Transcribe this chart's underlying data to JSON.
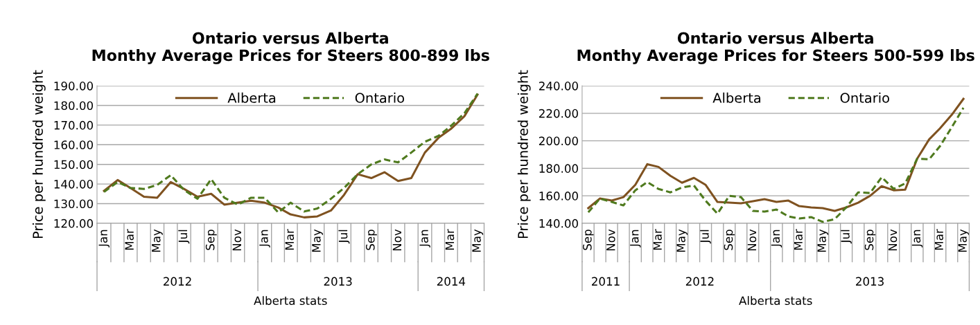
{
  "chart_data": [
    {
      "type": "line",
      "title": "Ontario versus Alberta\nMonthy Average Prices for Steers 800-899 lbs",
      "ylabel": "Price per hundred weight",
      "x": [
        "2012-01",
        "2012-02",
        "2012-03",
        "2012-04",
        "2012-05",
        "2012-06",
        "2012-07",
        "2012-08",
        "2012-09",
        "2012-10",
        "2012-11",
        "2012-12",
        "2013-01",
        "2013-02",
        "2013-03",
        "2013-04",
        "2013-05",
        "2013-06",
        "2013-07",
        "2013-08",
        "2013-09",
        "2013-10",
        "2013-11",
        "2013-12",
        "2014-01",
        "2014-02",
        "2014-03",
        "2014-04",
        "2014-05"
      ],
      "series": [
        {
          "name": "Alberta",
          "color": "#7f5220",
          "line_style": "solid",
          "values": [
            136.5,
            142,
            138,
            133.5,
            133,
            141,
            137.5,
            133.5,
            135,
            129.5,
            130.5,
            131.5,
            130.5,
            128,
            124.5,
            123,
            123.5,
            126.5,
            134.5,
            145,
            143,
            146,
            141.5,
            143,
            156,
            163.5,
            168,
            174.5,
            185.5
          ]
        },
        {
          "name": "Ontario",
          "color": "#4f7a1e",
          "line_style": "dashed",
          "values": [
            136,
            141,
            138,
            137.5,
            139.5,
            144.5,
            137,
            132.5,
            142.5,
            133,
            129.5,
            133,
            133,
            125.5,
            130.5,
            126,
            127.5,
            132.5,
            138,
            145,
            150,
            152.5,
            151,
            156,
            161.5,
            164.5,
            169.5,
            176,
            186
          ]
        }
      ],
      "xlim": [
        "2011-12-16",
        "2014-05-16"
      ],
      "xticks": [
        {
          "value": "2012-01",
          "label": "Jan"
        },
        {
          "value": "2012-03",
          "label": "Mar"
        },
        {
          "value": "2012-05",
          "label": "May"
        },
        {
          "value": "2012-07",
          "label": "Jul"
        },
        {
          "value": "2012-09",
          "label": "Sep"
        },
        {
          "value": "2012-11",
          "label": "Nov"
        },
        {
          "value": "2013-01",
          "label": "Jan"
        },
        {
          "value": "2013-03",
          "label": "Mar"
        },
        {
          "value": "2013-05",
          "label": "May"
        },
        {
          "value": "2013-07",
          "label": "Jul"
        },
        {
          "value": "2013-09",
          "label": "Sep"
        },
        {
          "value": "2013-11",
          "label": "Nov"
        },
        {
          "value": "2014-01",
          "label": "Jan"
        },
        {
          "value": "2014-03",
          "label": "Mar"
        },
        {
          "value": "2014-05",
          "label": "May"
        }
      ],
      "ylim": [
        120,
        190
      ],
      "yticks": [
        {
          "value": 120,
          "label": "120.00"
        },
        {
          "value": 130,
          "label": "130.00"
        },
        {
          "value": 140,
          "label": "140.00"
        },
        {
          "value": 150,
          "label": "150.00"
        },
        {
          "value": 160,
          "label": "160.00"
        },
        {
          "value": 170,
          "label": "170.00"
        },
        {
          "value": 180,
          "label": "180.00"
        },
        {
          "value": 190,
          "label": "190.00"
        }
      ],
      "grid": "y",
      "legend": "top",
      "marker": "none",
      "annotations": [
        "2012",
        "2013",
        "2014",
        "Alberta stats"
      ]
    },
    {
      "type": "line",
      "title": "Ontario versus Alberta\nMonthy Average Prices for Steers 500-599 lbs",
      "ylabel": "Price per hundred weight",
      "x": [
        "2011-09",
        "2011-10",
        "2011-11",
        "2011-12",
        "2012-01",
        "2012-02",
        "2012-03",
        "2012-04",
        "2012-05",
        "2012-06",
        "2012-07",
        "2012-08",
        "2012-09",
        "2012-10",
        "2012-11",
        "2012-12",
        "2013-01",
        "2013-02",
        "2013-03",
        "2013-04",
        "2013-05",
        "2013-06",
        "2013-07",
        "2013-08",
        "2013-09",
        "2013-10",
        "2013-11",
        "2013-12",
        "2014-01",
        "2014-02",
        "2014-03",
        "2014-04",
        "2014-05"
      ],
      "series": [
        {
          "name": "Alberta",
          "color": "#7f5220",
          "line_style": "solid",
          "values": [
            151,
            158,
            156.5,
            159,
            168,
            183,
            181,
            174.5,
            169.5,
            173,
            168,
            155.5,
            155,
            154.5,
            156,
            157.5,
            155.5,
            156.5,
            152.5,
            151.5,
            151,
            149,
            151.5,
            155,
            160,
            167,
            164,
            164.5,
            187,
            201,
            209,
            219,
            230.5
          ]
        },
        {
          "name": "Ontario",
          "color": "#4f7a1e",
          "line_style": "dashed",
          "values": [
            148,
            158,
            155.5,
            153,
            164,
            170,
            165,
            162.5,
            166,
            167.5,
            156.5,
            147,
            160,
            159,
            149,
            148.5,
            150,
            145,
            143.5,
            144.5,
            141,
            143,
            151.5,
            162.5,
            162,
            173.5,
            165,
            169,
            187,
            186.5,
            196,
            210,
            224
          ]
        }
      ],
      "xlim": [
        "2011-08-16",
        "2014-05-16"
      ],
      "xticks": [
        {
          "value": "2011-09",
          "label": "Sep"
        },
        {
          "value": "2011-11",
          "label": "Nov"
        },
        {
          "value": "2012-01",
          "label": "Jan"
        },
        {
          "value": "2012-03",
          "label": "Mar"
        },
        {
          "value": "2012-05",
          "label": "May"
        },
        {
          "value": "2012-07",
          "label": "Jul"
        },
        {
          "value": "2012-09",
          "label": "Sep"
        },
        {
          "value": "2012-11",
          "label": "Nov"
        },
        {
          "value": "2013-01",
          "label": "Jan"
        },
        {
          "value": "2013-03",
          "label": "Mar"
        },
        {
          "value": "2013-05",
          "label": "May"
        },
        {
          "value": "2013-07",
          "label": "Jul"
        },
        {
          "value": "2013-09",
          "label": "Sep"
        },
        {
          "value": "2013-11",
          "label": "Nov"
        },
        {
          "value": "2014-01",
          "label": "Jan"
        },
        {
          "value": "2014-03",
          "label": "Mar"
        },
        {
          "value": "2014-05",
          "label": "May"
        }
      ],
      "ylim": [
        140,
        240
      ],
      "yticks": [
        {
          "value": 140,
          "label": "140.00"
        },
        {
          "value": 160,
          "label": "160.00"
        },
        {
          "value": 180,
          "label": "180.00"
        },
        {
          "value": 200,
          "label": "200.00"
        },
        {
          "value": 220,
          "label": "220.00"
        },
        {
          "value": 240,
          "label": "240.00"
        }
      ],
      "grid": "y",
      "legend": "top",
      "marker": "none",
      "annotations": [
        "2011",
        "2012",
        "2013",
        "Alberta stats"
      ]
    }
  ]
}
